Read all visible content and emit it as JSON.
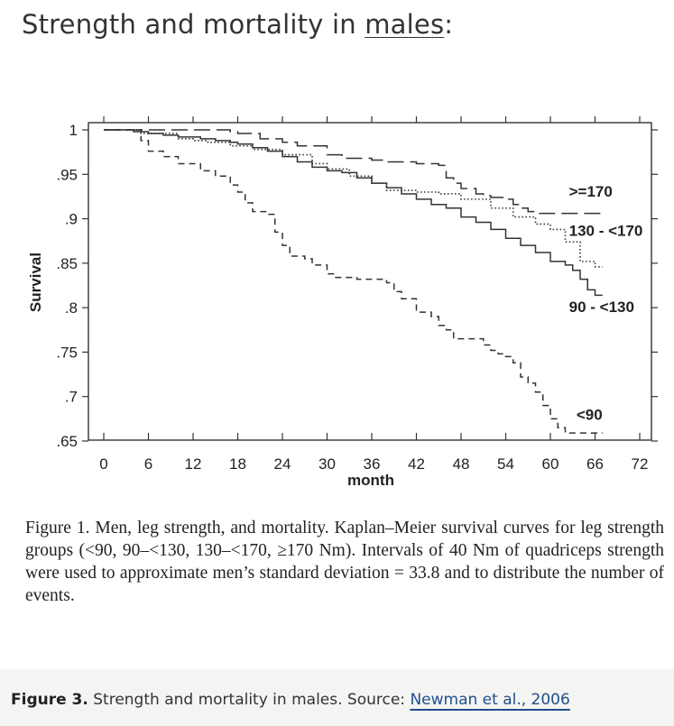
{
  "heading": {
    "prefix": "Strength and mortality in ",
    "emphasis": "males",
    "suffix": ":"
  },
  "caption": "Figure 1.  Men, leg strength, and mortality. Kaplan–Meier survival curves for leg strength groups (<90, 90–<130, 130–<170, ≥170 Nm). Intervals of 40 Nm of quadriceps strength were used to approximate men’s standard deviation = 33.8 and to distribute the number of events.",
  "footer": {
    "label": "Figure 3.",
    "text": " Strength and mortality in males. Source: ",
    "link_text": "Newman et al., 2006"
  },
  "chart_data": {
    "type": "line",
    "step": true,
    "xlabel": "month",
    "ylabel": "Survival",
    "xlim": [
      0,
      72
    ],
    "ylim": [
      0.65,
      1.0
    ],
    "xticks": [
      0,
      6,
      12,
      18,
      24,
      30,
      36,
      42,
      48,
      54,
      60,
      66,
      72
    ],
    "xtick_labels": [
      "0",
      "6",
      "12",
      "18",
      "24",
      "30",
      "36",
      "42",
      "48",
      "54",
      "60",
      "66",
      "72"
    ],
    "yticks": [
      1.0,
      0.95,
      0.9,
      0.85,
      0.8,
      0.75,
      0.7,
      0.65
    ],
    "ytick_labels": [
      "1",
      ".95",
      ".9",
      ".85",
      ".8",
      ".75",
      ".7",
      ".65"
    ],
    "series": [
      {
        "name": ">=170",
        "dash": "long",
        "x": [
          0,
          16,
          17,
          18,
          21,
          24,
          26,
          28,
          30,
          32,
          36,
          38,
          42,
          45,
          46,
          47,
          48,
          50,
          51,
          52,
          54,
          55,
          56,
          57,
          58,
          62,
          67
        ],
        "y": [
          1.0,
          1.0,
          0.998,
          0.996,
          0.99,
          0.986,
          0.982,
          0.982,
          0.972,
          0.968,
          0.966,
          0.964,
          0.962,
          0.96,
          0.946,
          0.94,
          0.934,
          0.928,
          0.926,
          0.924,
          0.922,
          0.916,
          0.912,
          0.908,
          0.906,
          0.906,
          0.906
        ]
      },
      {
        "name": "130 - <170",
        "dash": "dotted",
        "x": [
          0,
          4,
          5,
          10,
          12,
          14,
          17,
          20,
          24,
          28,
          30,
          33,
          36,
          38,
          42,
          45,
          48,
          52,
          55,
          58,
          60,
          62,
          64,
          66,
          67
        ],
        "y": [
          1.0,
          1.0,
          0.996,
          0.99,
          0.988,
          0.986,
          0.982,
          0.978,
          0.972,
          0.962,
          0.956,
          0.948,
          0.94,
          0.932,
          0.93,
          0.928,
          0.922,
          0.912,
          0.902,
          0.894,
          0.888,
          0.874,
          0.852,
          0.846,
          0.846
        ]
      },
      {
        "name": "90 - <130",
        "dash": "solid",
        "x": [
          0,
          2,
          4,
          6,
          8,
          10,
          13,
          15,
          17,
          18,
          20,
          22,
          24,
          26,
          28,
          30,
          32,
          34,
          36,
          38,
          40,
          42,
          44,
          46,
          48,
          50,
          52,
          54,
          56,
          58,
          60,
          62,
          63,
          64,
          65,
          66,
          67
        ],
        "y": [
          1.0,
          1.0,
          0.998,
          0.996,
          0.994,
          0.992,
          0.99,
          0.988,
          0.986,
          0.984,
          0.98,
          0.976,
          0.97,
          0.964,
          0.958,
          0.954,
          0.952,
          0.946,
          0.94,
          0.935,
          0.928,
          0.922,
          0.916,
          0.912,
          0.902,
          0.896,
          0.888,
          0.878,
          0.87,
          0.862,
          0.852,
          0.848,
          0.842,
          0.832,
          0.82,
          0.814,
          0.814
        ]
      },
      {
        "name": "<90",
        "dash": "short",
        "x": [
          0,
          4,
          5,
          6,
          8,
          10,
          13,
          15,
          17,
          18,
          19,
          20,
          22,
          23,
          24,
          25,
          27,
          28,
          30,
          31,
          34,
          38,
          39,
          40,
          42,
          44,
          45,
          46,
          47,
          48,
          49,
          50,
          51,
          52,
          53,
          54,
          55,
          56,
          57,
          58,
          59,
          60,
          61,
          62,
          67
        ],
        "y": [
          1.0,
          1.0,
          0.988,
          0.976,
          0.97,
          0.962,
          0.954,
          0.948,
          0.938,
          0.93,
          0.918,
          0.908,
          0.905,
          0.885,
          0.87,
          0.858,
          0.855,
          0.848,
          0.838,
          0.834,
          0.832,
          0.828,
          0.818,
          0.81,
          0.795,
          0.79,
          0.78,
          0.775,
          0.765,
          0.765,
          0.765,
          0.765,
          0.758,
          0.752,
          0.748,
          0.745,
          0.738,
          0.722,
          0.715,
          0.705,
          0.69,
          0.675,
          0.665,
          0.659,
          0.659
        ]
      }
    ],
    "labels": [
      {
        "text": ">=170",
        "x": 62.5,
        "y": 0.925
      },
      {
        "text": "130 - <170",
        "x": 62.5,
        "y": 0.881
      },
      {
        "text": "90 - <130",
        "x": 62.5,
        "y": 0.795
      },
      {
        "text": "<90",
        "x": 63.5,
        "y": 0.674
      }
    ]
  }
}
